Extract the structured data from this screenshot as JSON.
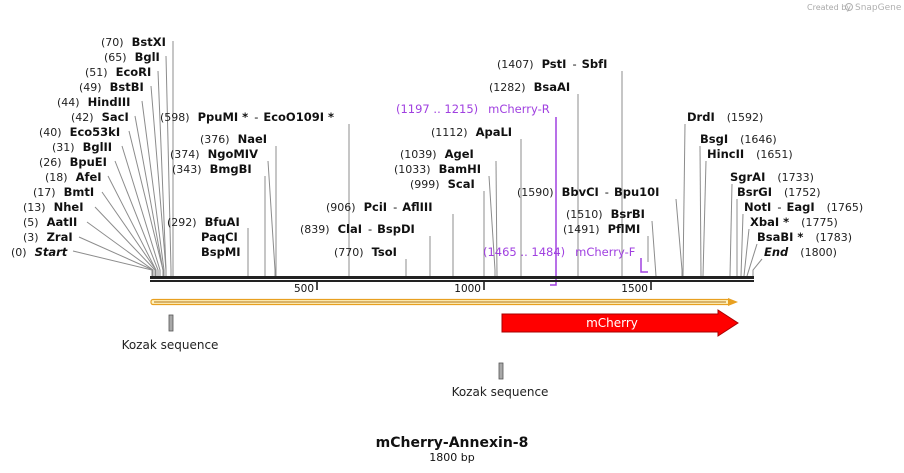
{
  "credit": {
    "prefix": "Created by",
    "brand": "SnapGene"
  },
  "title": "mCherry-Annexin-8",
  "subtitle": "1800 bp",
  "sequence_length": 1800,
  "axis_ticks": [
    "500",
    "1000",
    "1500"
  ],
  "sites": [
    {
      "name": "Start",
      "pos": "(0)",
      "bp": 0,
      "style": "italic"
    },
    {
      "name": "ZraI",
      "pos": "(3)",
      "bp": 3
    },
    {
      "name": "AatII",
      "pos": "(5)",
      "bp": 5
    },
    {
      "name": "NheI",
      "pos": "(13)",
      "bp": 13
    },
    {
      "name": "BmtI",
      "pos": "(17)",
      "bp": 17
    },
    {
      "name": "AfeI",
      "pos": "(18)",
      "bp": 18
    },
    {
      "name": "BpuEI",
      "pos": "(26)",
      "bp": 26
    },
    {
      "name": "BglII",
      "pos": "(31)",
      "bp": 31
    },
    {
      "name": "Eco53kI",
      "pos": "(40)",
      "bp": 40
    },
    {
      "name": "SacI",
      "pos": "(42)",
      "bp": 42
    },
    {
      "name": "HindIII",
      "pos": "(44)",
      "bp": 44
    },
    {
      "name": "BstBI",
      "pos": "(49)",
      "bp": 49
    },
    {
      "name": "EcoRI",
      "pos": "(51)",
      "bp": 51
    },
    {
      "name": "BglI",
      "pos": "(65)",
      "bp": 65
    },
    {
      "name": "BstXI",
      "pos": "(70)",
      "bp": 70
    },
    {
      "name": "BfuAI / PaqCI / BspMI",
      "names": [
        "BfuAI",
        "PaqCI",
        "BspMI"
      ],
      "pos": "(292)",
      "bp": 292
    },
    {
      "name": "BmgBI",
      "pos": "(343)",
      "bp": 343
    },
    {
      "name": "NgoMIV",
      "pos": "(374)",
      "bp": 374
    },
    {
      "name": "NaeI",
      "pos": "(376)",
      "bp": 376
    },
    {
      "name": "PpuMI * - EcoO109I *",
      "names": [
        "PpuMI *",
        "EcoO109I *"
      ],
      "pos": "(598)",
      "bp": 598
    },
    {
      "name": "TsoI",
      "pos": "(770)",
      "bp": 770
    },
    {
      "name": "ClaI - BspDI",
      "names": [
        "ClaI",
        "BspDI"
      ],
      "pos": "(839)",
      "bp": 839
    },
    {
      "name": "PciI - AflIII",
      "names": [
        "PciI",
        "AflIII"
      ],
      "pos": "(906)",
      "bp": 906
    },
    {
      "name": "ScaI",
      "pos": "(999)",
      "bp": 999
    },
    {
      "name": "BamHI",
      "pos": "(1033)",
      "bp": 1033
    },
    {
      "name": "AgeI",
      "pos": "(1039)",
      "bp": 1039
    },
    {
      "name": "ApaLI",
      "pos": "(1112)",
      "bp": 1112
    },
    {
      "name": "BsaAI",
      "pos": "(1282)",
      "bp": 1282
    },
    {
      "name": "PstI - SbfI",
      "names": [
        "PstI",
        "SbfI"
      ],
      "pos": "(1407)",
      "bp": 1407
    },
    {
      "name": "PflMI",
      "pos": "(1491)",
      "bp": 1491
    },
    {
      "name": "BsrBI",
      "pos": "(1510)",
      "bp": 1510
    },
    {
      "name": "BbvCI - Bpu10I",
      "names": [
        "BbvCI",
        "Bpu10I"
      ],
      "pos": "(1590)",
      "bp": 1590
    },
    {
      "name": "DrdI",
      "pos": "(1592)",
      "bp": 1592
    },
    {
      "name": "BsgI",
      "pos": "(1646)",
      "bp": 1646
    },
    {
      "name": "HincII",
      "pos": "(1651)",
      "bp": 1651
    },
    {
      "name": "SgrAI",
      "pos": "(1733)",
      "bp": 1733
    },
    {
      "name": "BsrGI",
      "pos": "(1752)",
      "bp": 1752
    },
    {
      "name": "NotI - EagI",
      "names": [
        "NotI",
        "EagI"
      ],
      "pos": "(1765)",
      "bp": 1765
    },
    {
      "name": "XbaI *",
      "pos": "(1775)",
      "bp": 1775
    },
    {
      "name": "BsaBI *",
      "pos": "(1783)",
      "bp": 1783
    },
    {
      "name": "End",
      "pos": "(1800)",
      "bp": 1800,
      "style": "italic"
    }
  ],
  "primers": [
    {
      "name": "mCherry-R",
      "range": "(1197 .. 1215)",
      "start": 1197,
      "end": 1215,
      "strand": "reverse"
    },
    {
      "name": "mCherry-F",
      "range": "(1465 .. 1484)",
      "start": 1465,
      "end": 1484,
      "strand": "forward"
    }
  ],
  "features": [
    {
      "name": "ORF",
      "start": 0,
      "end": 1797,
      "color": "#e8a020",
      "kind": "orf"
    },
    {
      "name": "Kozak sequence",
      "start": 57,
      "end": 63,
      "color": "#a8a8a8",
      "kind": "box"
    },
    {
      "name": "Kozak sequence",
      "start": 1056,
      "end": 1062,
      "color": "#a8a8a8",
      "kind": "box"
    },
    {
      "name": "mCherry",
      "start": 1065,
      "end": 1797,
      "color": "#ff0000",
      "kind": "arrow"
    }
  ],
  "colors": {
    "primer": "#a040e0",
    "backbone": "#222222",
    "mcherry": "#ff0000",
    "orf": "#e8a020"
  }
}
